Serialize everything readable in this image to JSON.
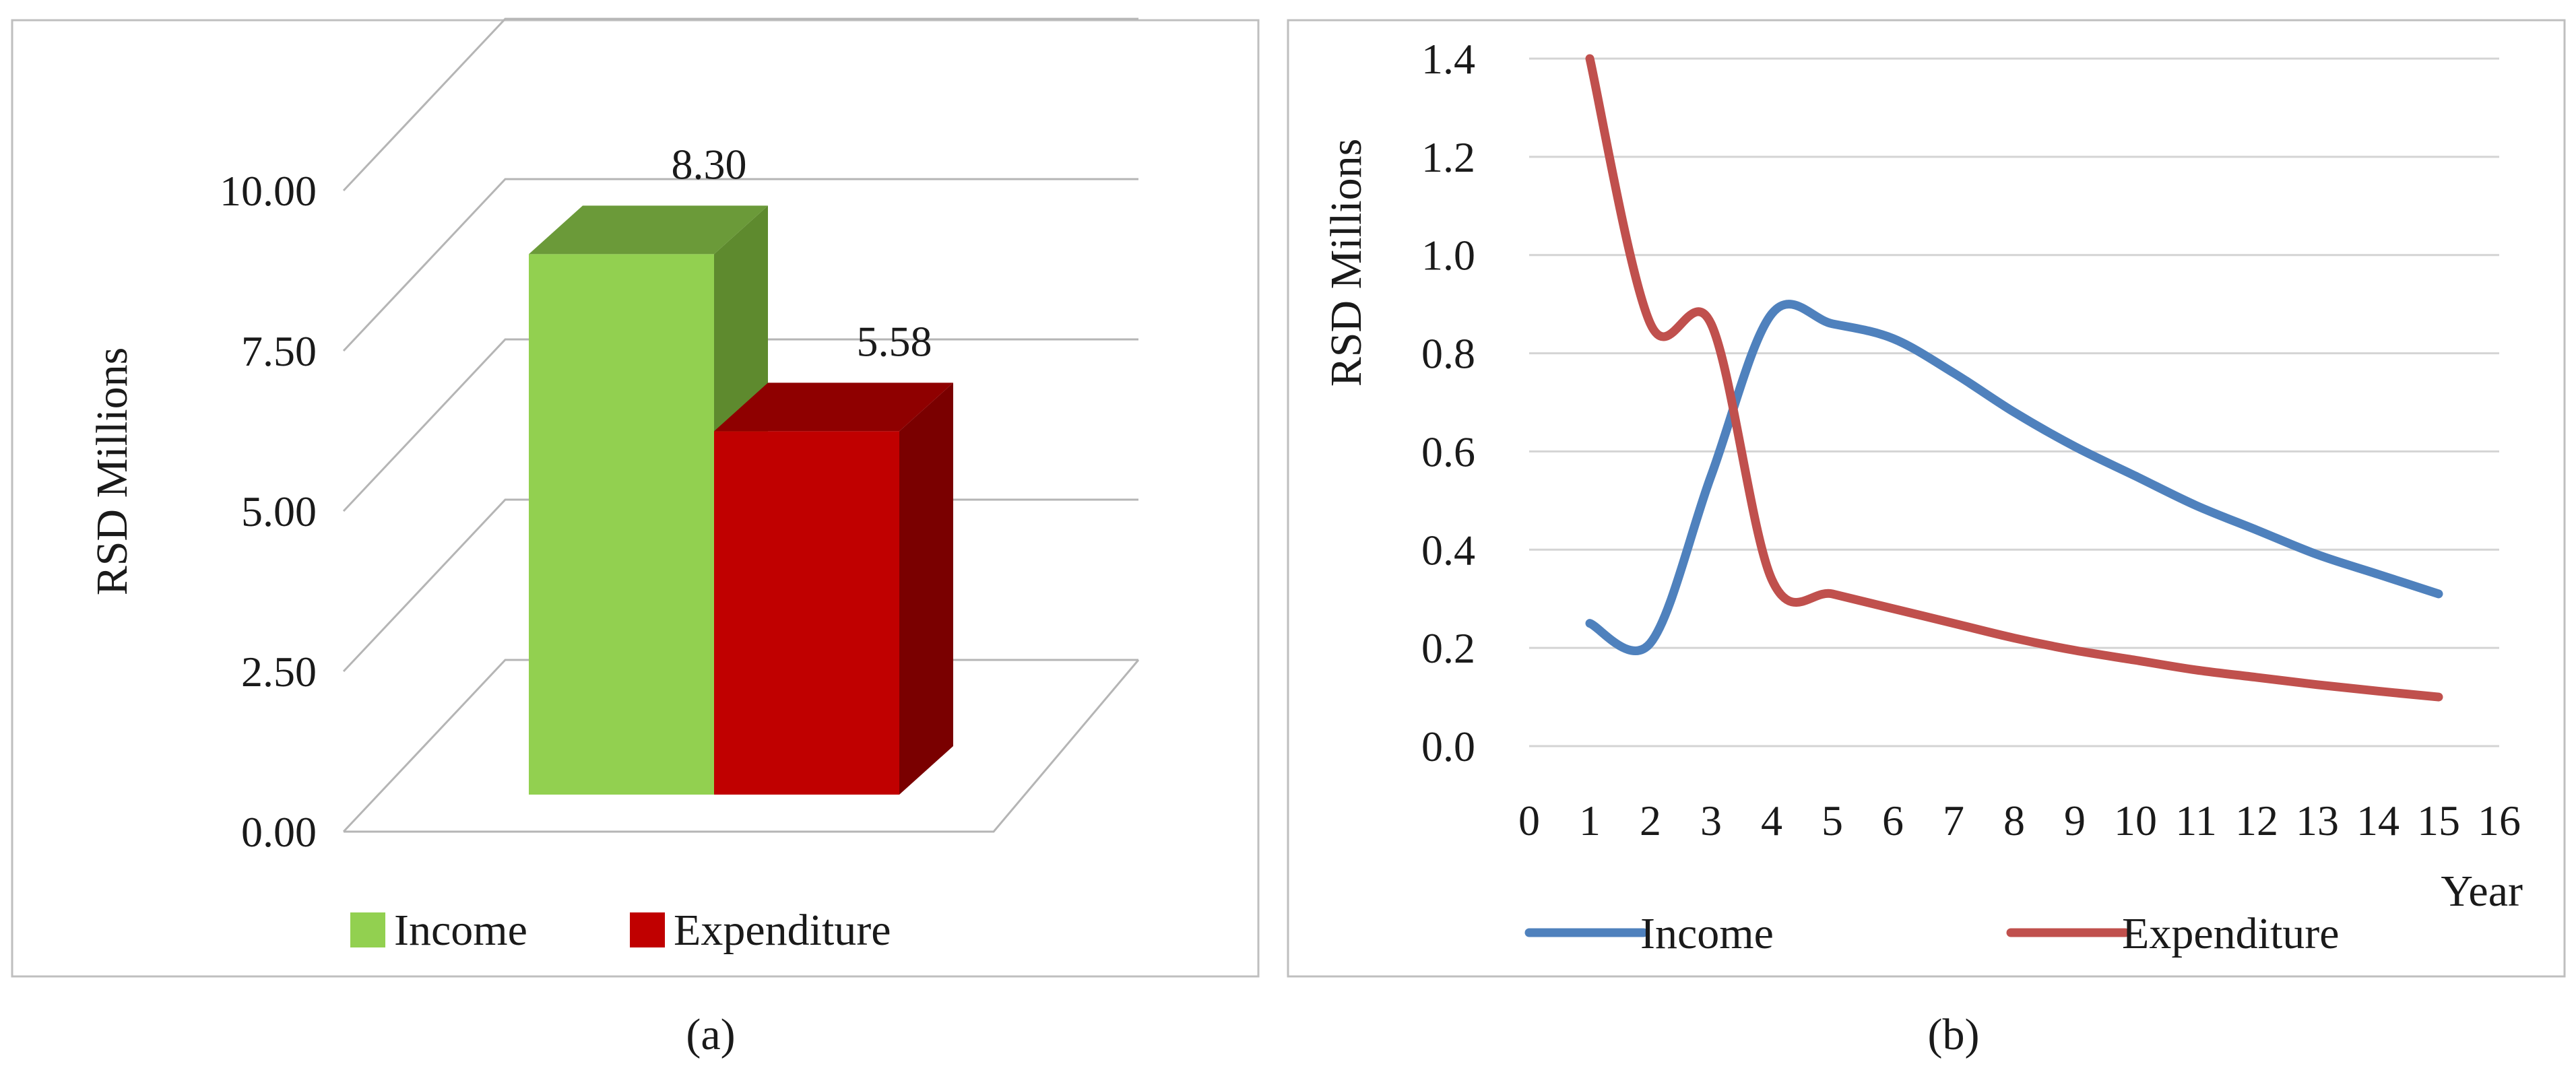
{
  "colors": {
    "income_front": "#92d050",
    "income_top": "#6b9a39",
    "income_side": "#5e8a2e",
    "expenditure_front": "#c00000",
    "expenditure_top": "#8f0000",
    "expenditure_side": "#7a0000",
    "line_income": "#4f81bd",
    "line_expenditure": "#c0504d",
    "grid": "#c0c0c0",
    "panel_border": "#bfbfbf"
  },
  "chart_data": [
    {
      "type": "bar",
      "panel_label": "(a)",
      "ylabel": "RSD Millions",
      "ylim": [
        0,
        10
      ],
      "yticks": [
        "0.00",
        "2.50",
        "5.00",
        "7.50",
        "10.00"
      ],
      "categories": [
        "Income",
        "Expenditure"
      ],
      "values": [
        8.3,
        5.58
      ],
      "data_labels": [
        "8.30",
        "5.58"
      ],
      "legend": [
        "Income",
        "Expenditure"
      ],
      "legend_position": "bottom",
      "style": "3d-column",
      "grid": true
    },
    {
      "type": "line",
      "panel_label": "(b)",
      "ylabel": "RSD Millions",
      "xlabel": "Year",
      "xlim": [
        0,
        16
      ],
      "ylim": [
        0,
        1.4
      ],
      "xticks": [
        "0",
        "1",
        "2",
        "3",
        "4",
        "5",
        "6",
        "7",
        "8",
        "9",
        "10",
        "11",
        "12",
        "13",
        "14",
        "15",
        "16"
      ],
      "yticks": [
        "0.0",
        "0.2",
        "0.4",
        "0.6",
        "0.8",
        "1.0",
        "1.2",
        "1.4"
      ],
      "series": [
        {
          "name": "Income",
          "x": [
            1,
            2,
            3,
            4,
            5,
            6,
            7,
            8,
            9,
            10,
            11,
            12,
            13,
            14,
            15
          ],
          "y": [
            0.25,
            0.21,
            0.55,
            0.88,
            0.86,
            0.83,
            0.76,
            0.68,
            0.61,
            0.55,
            0.49,
            0.44,
            0.39,
            0.35,
            0.31
          ]
        },
        {
          "name": "Expenditure",
          "x": [
            1,
            2,
            3,
            4,
            5,
            6,
            7,
            8,
            9,
            10,
            11,
            12,
            13,
            14,
            15
          ],
          "y": [
            1.4,
            0.86,
            0.86,
            0.34,
            0.31,
            0.28,
            0.25,
            0.22,
            0.195,
            0.175,
            0.155,
            0.14,
            0.125,
            0.112,
            0.1
          ]
        }
      ],
      "legend_position": "bottom",
      "grid": true,
      "smooth": true
    }
  ]
}
